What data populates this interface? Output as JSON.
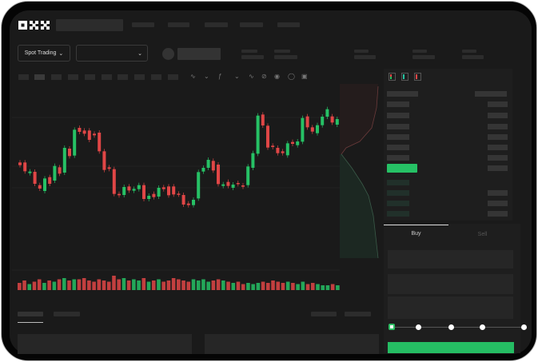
{
  "brand": {
    "logo": "OKX"
  },
  "header": {
    "selector_label": "Spot Trading",
    "selector_icon": "chevron-down-icon",
    "pair_icon": "chevron-down-icon"
  },
  "order_form": {
    "tabs": [
      {
        "label": "Buy",
        "active": true
      },
      {
        "label": "Sell",
        "active": false
      }
    ],
    "slider_percent": 0,
    "slider_stops": [
      0,
      25,
      50,
      75,
      100
    ]
  },
  "colors": {
    "up": "#26c165",
    "down": "#e04646",
    "background": "#1a1a1a",
    "accent": "#2ebd63"
  },
  "chart": {
    "type": "candlestick",
    "candles": [
      [
        200,
        190
      ],
      [
        200,
        167
      ],
      [
        160,
        166
      ],
      [
        165,
        120
      ],
      [
        115,
        102
      ],
      [
        93,
        140
      ],
      [
        145,
        120
      ],
      [
        132,
        187
      ],
      [
        182,
        158
      ],
      [
        162,
        255
      ],
      [
        252,
        224
      ],
      [
        226,
        323
      ],
      [
        330,
        315
      ],
      [
        320,
        308
      ],
      [
        320,
        285
      ],
      [
        308,
        302
      ],
      [
        312,
        242
      ],
      [
        242,
        172
      ],
      [
        182,
        176
      ],
      [
        175,
        82
      ],
      [
        82,
        77
      ],
      [
        78,
        108
      ],
      [
        110,
        95
      ],
      [
        94,
        101
      ],
      [
        100,
        115
      ],
      [
        115,
        63
      ],
      [
        63,
        75
      ],
      [
        82,
        70
      ],
      [
        72,
        105
      ],
      [
        107,
        100
      ],
      [
        110,
        77
      ],
      [
        110,
        80
      ],
      [
        83,
        80
      ],
      [
        78,
        42
      ],
      [
        46,
        40
      ],
      [
        40,
        60
      ],
      [
        65,
        164
      ],
      [
        166,
        180
      ],
      [
        180,
        210
      ],
      [
        206,
        170
      ],
      [
        192,
        119
      ],
      [
        112,
        118
      ],
      [
        127,
        112
      ],
      [
        105,
        117
      ],
      [
        123,
        119
      ],
      [
        114,
        109
      ],
      [
        115,
        185
      ],
      [
        180,
        235
      ],
      [
        233,
        376
      ],
      [
        380,
        339
      ],
      [
        338,
        256
      ],
      [
        263,
        258
      ],
      [
        255,
        235
      ],
      [
        242,
        235
      ],
      [
        227,
        272
      ],
      [
        277,
        270
      ],
      [
        265,
        279
      ],
      [
        278,
        367
      ],
      [
        373,
        332
      ],
      [
        332,
        316
      ],
      [
        310,
        340
      ],
      [
        340,
        372
      ],
      [
        372,
        400
      ],
      [
        373,
        350
      ],
      [
        342,
        363
      ]
    ],
    "volume": [
      6,
      8,
      5,
      7,
      9,
      6,
      8,
      7,
      9,
      10,
      8,
      9,
      9,
      10,
      8,
      7,
      9,
      8,
      7,
      12,
      9,
      10,
      8,
      9,
      8,
      10,
      7,
      8,
      9,
      7,
      8,
      10,
      9,
      8,
      7,
      9,
      8,
      9,
      7,
      8,
      9,
      8,
      7,
      6,
      7,
      5,
      6,
      5,
      6,
      7,
      6,
      8,
      7,
      6,
      7,
      6,
      5,
      7,
      5,
      6,
      5,
      4,
      4,
      5,
      4
    ]
  }
}
